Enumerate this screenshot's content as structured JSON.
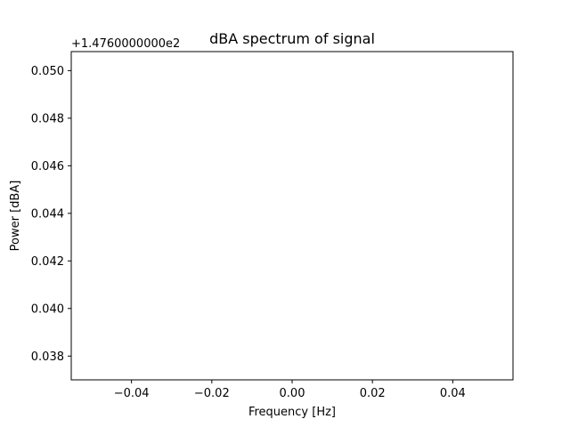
{
  "chart_data": {
    "type": "line",
    "title": "dBA spectrum of signal",
    "xlabel": "Frequency [Hz]",
    "ylabel": "Power [dBA]",
    "y_offset_label": "+1.4760000000e2",
    "xlim": [
      -0.055,
      0.055
    ],
    "ylim": [
      0.037,
      0.0508
    ],
    "x_ticks": [
      -0.04,
      -0.02,
      0.0,
      0.02,
      0.04
    ],
    "x_tick_labels": [
      "−0.04",
      "−0.02",
      "0.00",
      "0.02",
      "0.04"
    ],
    "y_ticks": [
      0.038,
      0.04,
      0.042,
      0.044,
      0.046,
      0.048,
      0.05
    ],
    "y_tick_labels": [
      "0.038",
      "0.040",
      "0.042",
      "0.044",
      "0.046",
      "0.048",
      "0.050"
    ],
    "grid": false,
    "series": []
  }
}
